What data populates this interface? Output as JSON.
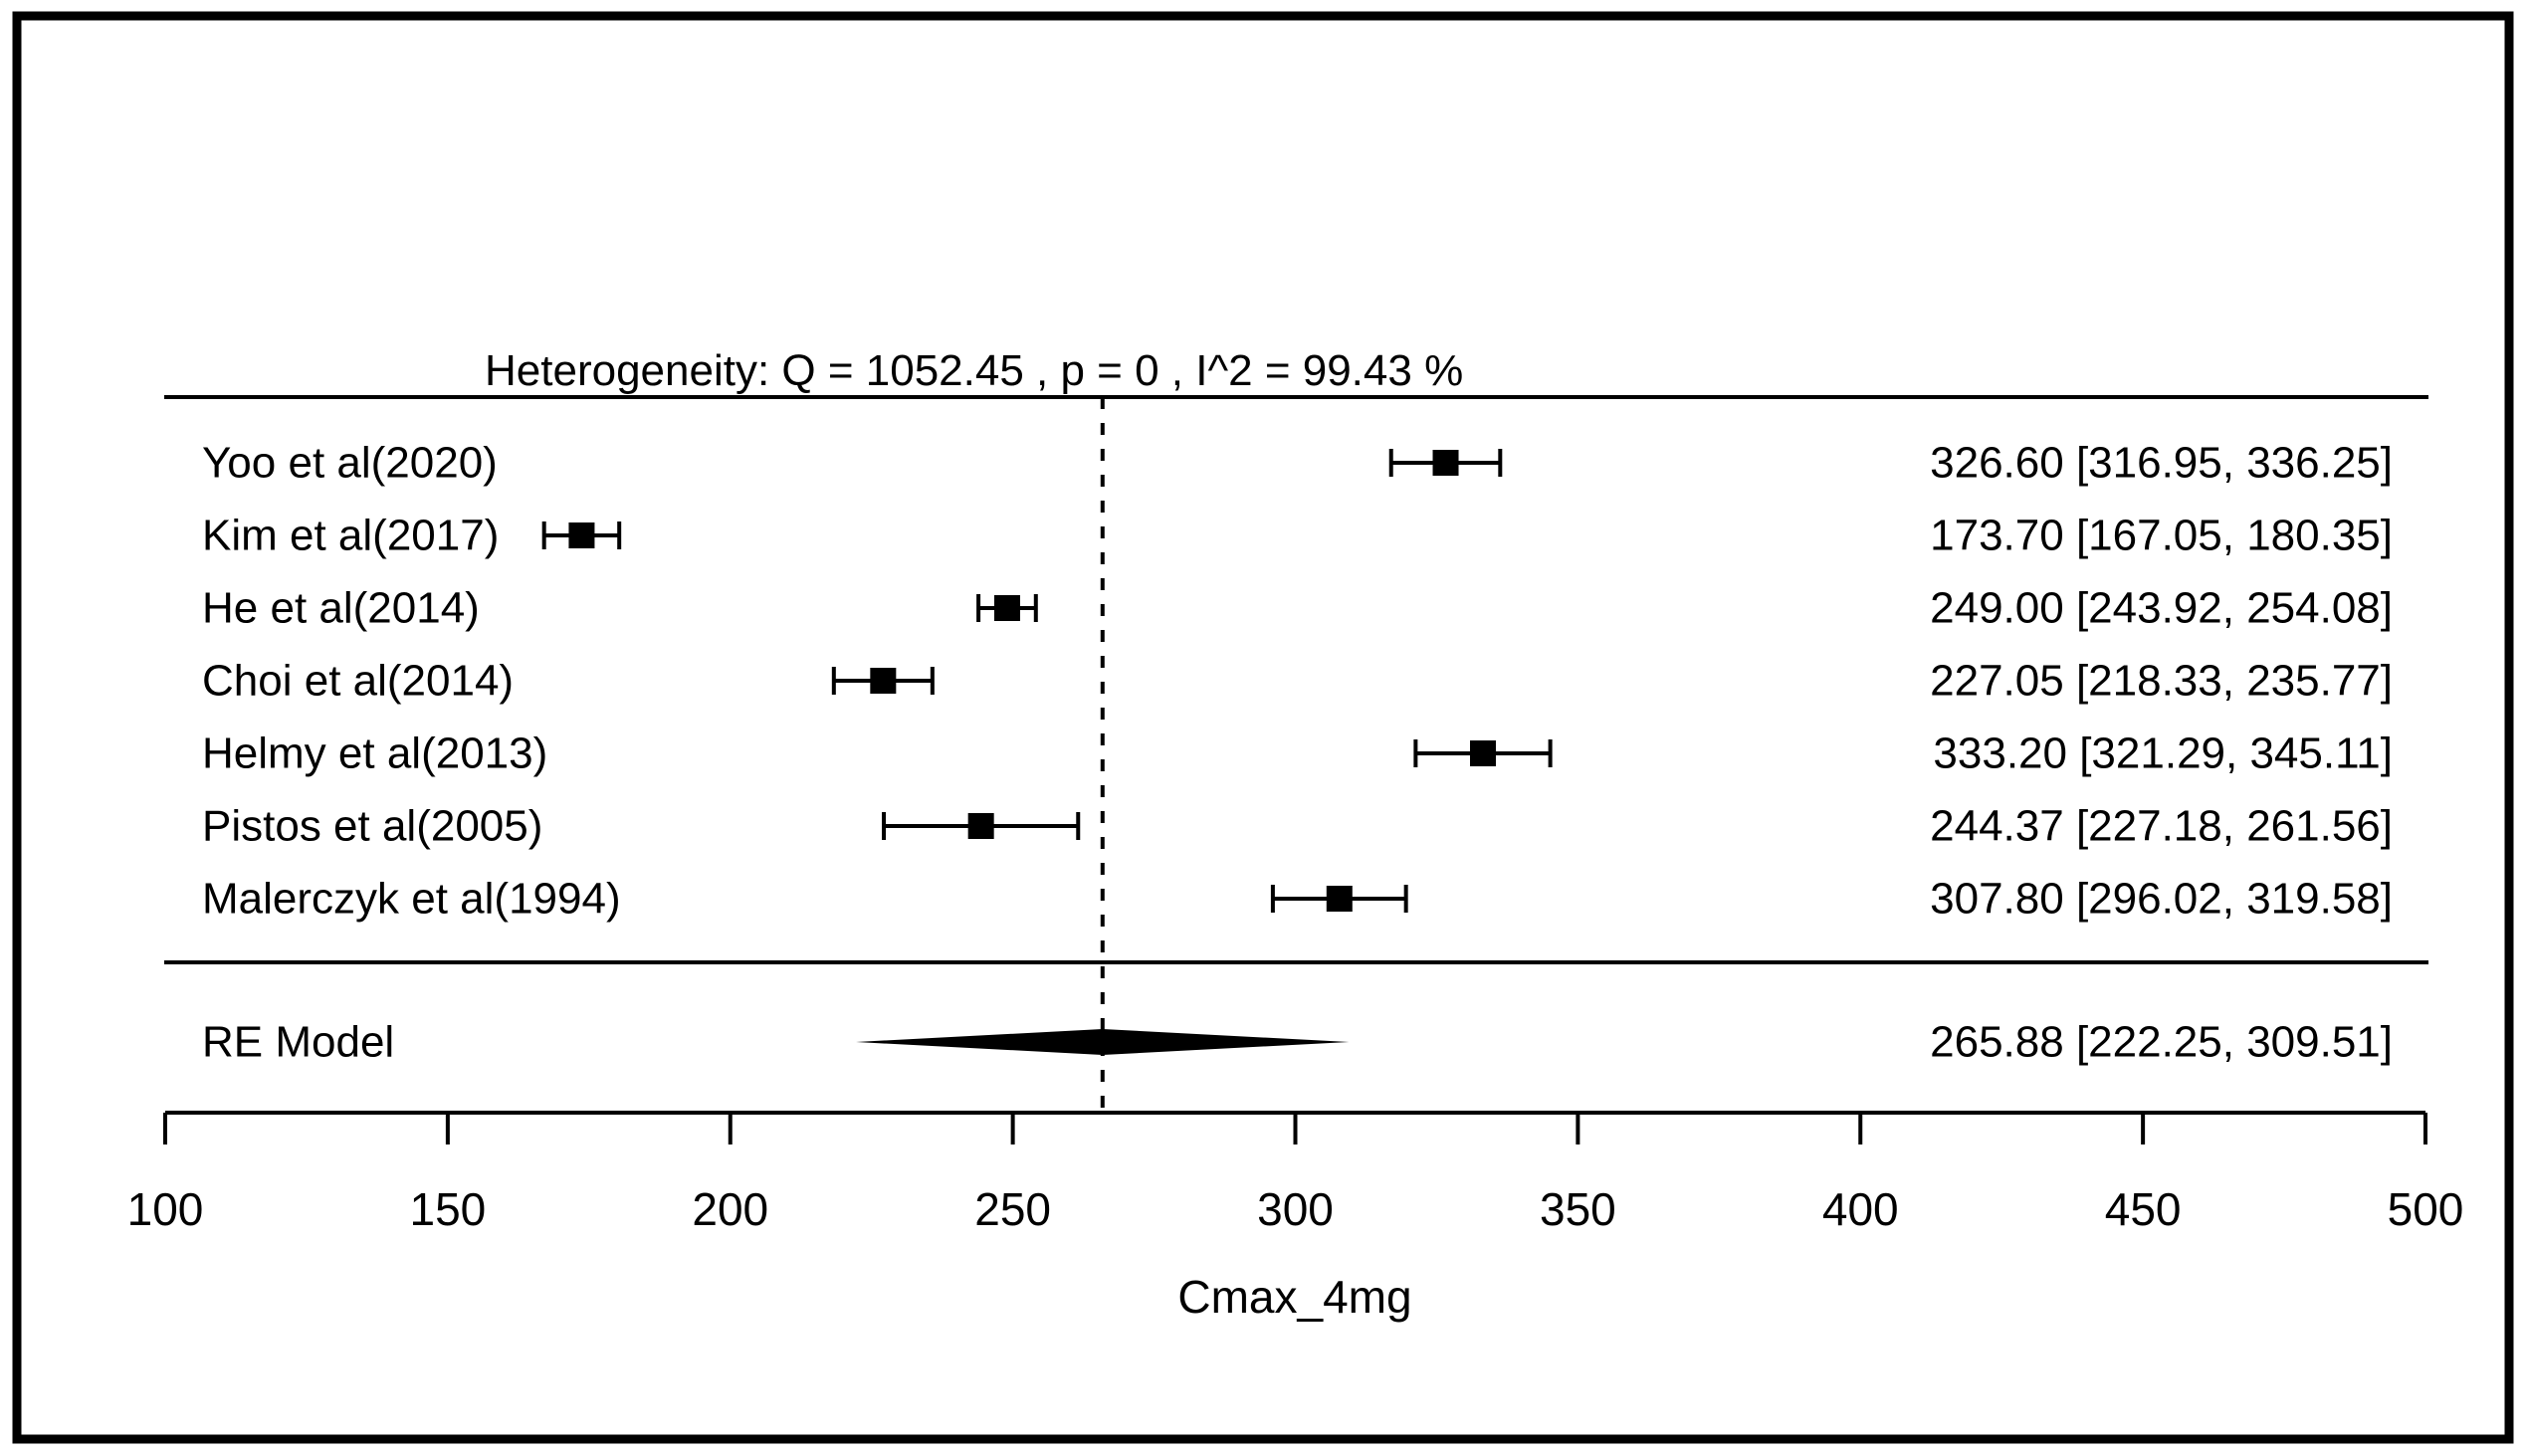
{
  "chart_data": {
    "type": "forest",
    "heterogeneity_label": "Heterogeneity: Q = 1052.45 , p = 0 , I^2 = 99.43 %",
    "xlabel": "Cmax_4mg",
    "xlim": [
      100,
      500
    ],
    "x_ticks": [
      100,
      150,
      200,
      250,
      300,
      350,
      400,
      450,
      500
    ],
    "reference_line_value": 265.88,
    "grid": false,
    "studies": [
      {
        "label": "Yoo et al(2020)",
        "estimate": 326.6,
        "ci_lower": 316.95,
        "ci_upper": 336.25,
        "annotation": "326.60 [316.95, 336.25]"
      },
      {
        "label": "Kim et al(2017)",
        "estimate": 173.7,
        "ci_lower": 167.05,
        "ci_upper": 180.35,
        "annotation": "173.70 [167.05, 180.35]"
      },
      {
        "label": "He et al(2014)",
        "estimate": 249.0,
        "ci_lower": 243.92,
        "ci_upper": 254.08,
        "annotation": "249.00 [243.92, 254.08]"
      },
      {
        "label": "Choi et al(2014)",
        "estimate": 227.05,
        "ci_lower": 218.33,
        "ci_upper": 235.77,
        "annotation": "227.05 [218.33, 235.77]"
      },
      {
        "label": "Helmy et al(2013)",
        "estimate": 333.2,
        "ci_lower": 321.29,
        "ci_upper": 345.11,
        "annotation": "333.20 [321.29, 345.11]"
      },
      {
        "label": "Pistos et al(2005)",
        "estimate": 244.37,
        "ci_lower": 227.18,
        "ci_upper": 261.56,
        "annotation": "244.37 [227.18, 261.56]"
      },
      {
        "label": "Malerczyk et al(1994)",
        "estimate": 307.8,
        "ci_lower": 296.02,
        "ci_upper": 319.58,
        "annotation": "307.80 [296.02, 319.58]"
      }
    ],
    "summary": {
      "label": "RE Model",
      "estimate": 265.88,
      "ci_lower": 222.25,
      "ci_upper": 309.51,
      "annotation": "265.88 [222.25, 309.51]"
    },
    "colors": {
      "foreground": "#000000",
      "background": "#ffffff"
    }
  }
}
